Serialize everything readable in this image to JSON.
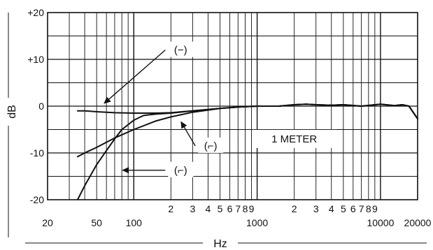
{
  "chart_data": {
    "type": "line",
    "title": "",
    "xlabel": "Hz",
    "ylabel": "dB",
    "x_scale": "log",
    "xlim": [
      20,
      20000
    ],
    "ylim": [
      -20,
      20
    ],
    "grid": true,
    "x_tick_labels": [
      {
        "x": 20,
        "label": "20"
      },
      {
        "x": 50,
        "label": "50"
      },
      {
        "x": 100,
        "label": "100"
      },
      {
        "x": 200,
        "label": "2"
      },
      {
        "x": 300,
        "label": "3"
      },
      {
        "x": 400,
        "label": "4"
      },
      {
        "x": 500,
        "label": "5"
      },
      {
        "x": 600,
        "label": "6"
      },
      {
        "x": 700,
        "label": "7"
      },
      {
        "x": 800,
        "label": "8"
      },
      {
        "x": 900,
        "label": "9"
      },
      {
        "x": 1000,
        "label": "1000"
      },
      {
        "x": 2000,
        "label": "2"
      },
      {
        "x": 3000,
        "label": "3"
      },
      {
        "x": 4000,
        "label": "4"
      },
      {
        "x": 5000,
        "label": "5"
      },
      {
        "x": 6000,
        "label": "6"
      },
      {
        "x": 7000,
        "label": "7"
      },
      {
        "x": 8000,
        "label": "8"
      },
      {
        "x": 9000,
        "label": "9"
      },
      {
        "x": 10000,
        "label": "10000"
      },
      {
        "x": 20000,
        "label": "20000"
      }
    ],
    "y_tick_labels": [
      {
        "y": 20,
        "label": "+20"
      },
      {
        "y": 10,
        "label": "+10"
      },
      {
        "y": 0,
        "label": "0"
      },
      {
        "y": -10,
        "label": "-10"
      },
      {
        "y": -20,
        "label": "-20"
      }
    ],
    "series": [
      {
        "label": "(−)",
        "x": [
          35,
          40,
          50,
          70,
          100,
          150,
          200,
          300,
          500,
          700,
          1000,
          1500,
          2000,
          2500,
          3000,
          4000,
          5000,
          7000,
          10000,
          13000,
          15000,
          17000,
          20000
        ],
        "y": [
          -1.0,
          -1.0,
          -1.2,
          -1.4,
          -1.5,
          -1.5,
          -1.4,
          -1.0,
          -0.5,
          -0.2,
          0.0,
          0.0,
          0.3,
          0.4,
          0.3,
          0.2,
          0.3,
          0.0,
          0.4,
          0.1,
          0.3,
          0.0,
          -2.7
        ]
      },
      {
        "label": "(⌐)",
        "x": [
          35,
          40,
          50,
          70,
          100,
          150,
          200,
          300,
          500,
          700,
          1000,
          1500,
          2000,
          2500,
          3000,
          4000,
          5000,
          7000,
          10000,
          13000,
          15000,
          17000,
          20000
        ],
        "y": [
          -10.8,
          -10.0,
          -8.8,
          -6.8,
          -5.0,
          -3.2,
          -2.3,
          -1.3,
          -0.5,
          -0.2,
          0.0,
          0.0,
          0.3,
          0.4,
          0.3,
          0.2,
          0.3,
          0.0,
          0.4,
          0.1,
          0.3,
          0.0,
          -2.7
        ]
      },
      {
        "label": "(⌐)",
        "x": [
          35,
          40,
          50,
          60,
          70,
          80,
          100,
          120,
          150,
          200,
          300,
          500,
          700,
          1000,
          1500,
          2000,
          2500,
          3000,
          4000,
          5000,
          7000,
          10000,
          13000,
          15000,
          17000,
          20000
        ],
        "y": [
          -20.0,
          -17.0,
          -12.5,
          -9.5,
          -7.0,
          -5.0,
          -3.0,
          -2.0,
          -1.7,
          -1.5,
          -1.0,
          -0.5,
          -0.2,
          0.0,
          0.0,
          0.3,
          0.4,
          0.3,
          0.2,
          0.3,
          0.0,
          0.4,
          0.1,
          0.3,
          0.0,
          -2.7
        ]
      }
    ],
    "annotations": [
      {
        "text": "(−)",
        "text_x": 240,
        "text_y": 12,
        "arrow_to_x": 57,
        "arrow_to_y": 0.5
      },
      {
        "text": "(⌐)",
        "text_x": 420,
        "text_y": -8.5,
        "arrow_to_x": 240,
        "arrow_to_y": -3.2
      },
      {
        "text": "(⌐)",
        "text_x": 240,
        "text_y": -13.7,
        "arrow_to_x": 80,
        "arrow_to_y": -13.7
      },
      {
        "text": "1 METER",
        "text_x": 2000,
        "text_y": -7.0
      }
    ]
  }
}
